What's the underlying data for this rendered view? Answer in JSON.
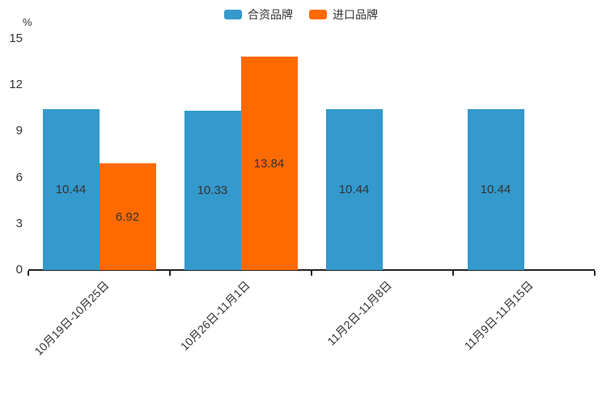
{
  "chart_data": {
    "type": "bar",
    "title": "",
    "ylabel": "%",
    "xlabel": "",
    "categories": [
      "10月19日-10月25日",
      "10月26日-11月1日",
      "11月2日-11月8日",
      "11月9日-11月15日"
    ],
    "series": [
      {
        "name": "合资品牌",
        "color": "#3499cd",
        "values": [
          10.44,
          10.33,
          10.44,
          10.44
        ],
        "labels": [
          "10.44",
          "10.33",
          "10.44",
          "10.44"
        ]
      },
      {
        "name": "进口品牌",
        "color": "#ff6a00",
        "values": [
          6.92,
          13.84,
          null,
          null
        ],
        "labels": [
          "6.92",
          "13.84",
          null,
          null
        ]
      }
    ],
    "ylim": [
      0,
      15
    ],
    "yticks": [
      0,
      3,
      6,
      9,
      12,
      15
    ],
    "grid": false,
    "legend_position": "top-center",
    "x_label_rotation_deg": -45
  },
  "colors": {
    "axis": "#222222",
    "text": "#333333",
    "background": "#ffffff",
    "series_blue": "#3499cd",
    "series_orange": "#ff6a00"
  }
}
